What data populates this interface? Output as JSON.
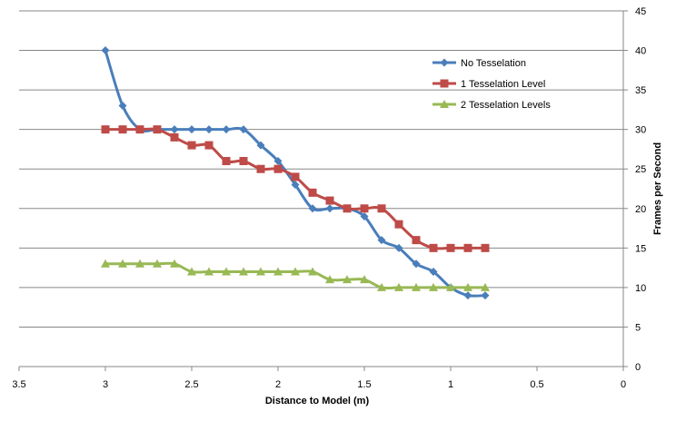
{
  "chart_data": {
    "type": "line",
    "title": "",
    "xlabel": "Distance to Model (m)",
    "ylabel": "Frames per Second",
    "xlim": [
      3.5,
      0
    ],
    "ylim": [
      0,
      45
    ],
    "x_reversed": true,
    "y_axis_side": "right",
    "grid": "horizontal",
    "legend_position": "top-right",
    "x_ticks": [
      "3.5",
      "3",
      "2.5",
      "2",
      "1.5",
      "1",
      "0.5",
      "0"
    ],
    "y_ticks": [
      "0",
      "5",
      "10",
      "15",
      "20",
      "25",
      "30",
      "35",
      "40",
      "45"
    ],
    "x": [
      3.0,
      2.9,
      2.8,
      2.7,
      2.6,
      2.5,
      2.4,
      2.3,
      2.2,
      2.1,
      2.0,
      1.9,
      1.8,
      1.7,
      1.6,
      1.5,
      1.4,
      1.3,
      1.2,
      1.1,
      1.0,
      0.9,
      0.8
    ],
    "series": [
      {
        "name": "No Tesselation",
        "color": "#4a7ebb",
        "marker": "diamond",
        "values": [
          40,
          33,
          30,
          30,
          30,
          30,
          30,
          30,
          30,
          28,
          26,
          23,
          20,
          20,
          20,
          19,
          16,
          15,
          13,
          12,
          10,
          9,
          9
        ]
      },
      {
        "name": "1 Tesselation Level",
        "color": "#be4b48",
        "marker": "square",
        "values": [
          30,
          30,
          30,
          30,
          29,
          28,
          28,
          26,
          26,
          25,
          25,
          24,
          22,
          21,
          20,
          20,
          20,
          18,
          16,
          15,
          15,
          15,
          15
        ]
      },
      {
        "name": "2 Tesselation Levels",
        "color": "#98b954",
        "marker": "triangle",
        "values": [
          13,
          13,
          13,
          13,
          13,
          12,
          12,
          12,
          12,
          12,
          12,
          12,
          12,
          11,
          11,
          11,
          10,
          10,
          10,
          10,
          10,
          10,
          10
        ]
      }
    ]
  }
}
